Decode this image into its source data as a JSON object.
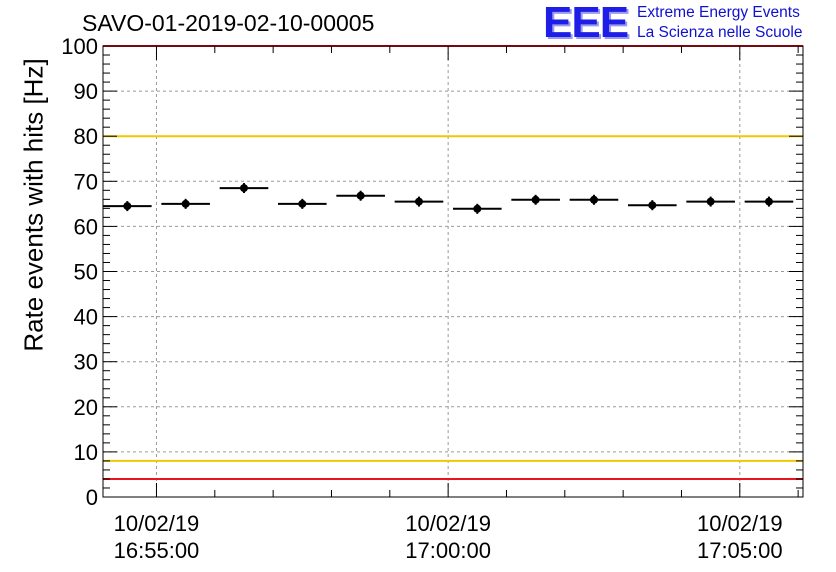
{
  "chart_data": {
    "type": "scatter",
    "title": "SAVO-01-2019-02-10-00005",
    "ylabel": "Rate events with hits [Hz]",
    "xlabel": "",
    "ylim": [
      0,
      100
    ],
    "yticks": [
      0,
      10,
      20,
      30,
      40,
      50,
      60,
      70,
      80,
      90,
      100
    ],
    "xlim": [
      "2019-02-10 16:54:05",
      "2019-02-10 17:06:05"
    ],
    "xtick_labels": [
      {
        "time": "2019-02-10 16:55:00",
        "date": "10/02/19",
        "clock": "16:55:00"
      },
      {
        "time": "2019-02-10 17:00:00",
        "date": "10/02/19",
        "clock": "17:00:00"
      },
      {
        "time": "2019-02-10 17:05:00",
        "date": "10/02/19",
        "clock": "17:05:00"
      }
    ],
    "grid": true,
    "reference_lines": [
      {
        "y": 80,
        "color": "#f0c800"
      },
      {
        "y": 8,
        "color": "#f0c800"
      },
      {
        "y": 4,
        "color": "#e8141e"
      },
      {
        "y": 100,
        "color": "#e8141e"
      }
    ],
    "points": [
      {
        "x_start": "2019-02-10 16:54:05",
        "x_end": "2019-02-10 16:54:55",
        "y": 64.5
      },
      {
        "x_start": "2019-02-10 16:55:05",
        "x_end": "2019-02-10 16:55:55",
        "y": 65.0
      },
      {
        "x_start": "2019-02-10 16:56:05",
        "x_end": "2019-02-10 16:56:55",
        "y": 68.5
      },
      {
        "x_start": "2019-02-10 16:57:05",
        "x_end": "2019-02-10 16:57:55",
        "y": 65.0
      },
      {
        "x_start": "2019-02-10 16:58:05",
        "x_end": "2019-02-10 16:58:55",
        "y": 66.8
      },
      {
        "x_start": "2019-02-10 16:59:05",
        "x_end": "2019-02-10 16:59:55",
        "y": 65.5
      },
      {
        "x_start": "2019-02-10 17:00:05",
        "x_end": "2019-02-10 17:00:55",
        "y": 63.9
      },
      {
        "x_start": "2019-02-10 17:01:05",
        "x_end": "2019-02-10 17:01:55",
        "y": 65.9
      },
      {
        "x_start": "2019-02-10 17:02:05",
        "x_end": "2019-02-10 17:02:55",
        "y": 65.9
      },
      {
        "x_start": "2019-02-10 17:03:05",
        "x_end": "2019-02-10 17:03:55",
        "y": 64.7
      },
      {
        "x_start": "2019-02-10 17:04:05",
        "x_end": "2019-02-10 17:04:55",
        "y": 65.5
      },
      {
        "x_start": "2019-02-10 17:05:05",
        "x_end": "2019-02-10 17:05:55",
        "y": 65.5
      }
    ],
    "marker_color": "#000000"
  },
  "logo": {
    "mark": "EEE",
    "line1": "Extreme Energy Events",
    "line2": "La Scienza nelle Scuole",
    "color": "#1e1ee6"
  }
}
